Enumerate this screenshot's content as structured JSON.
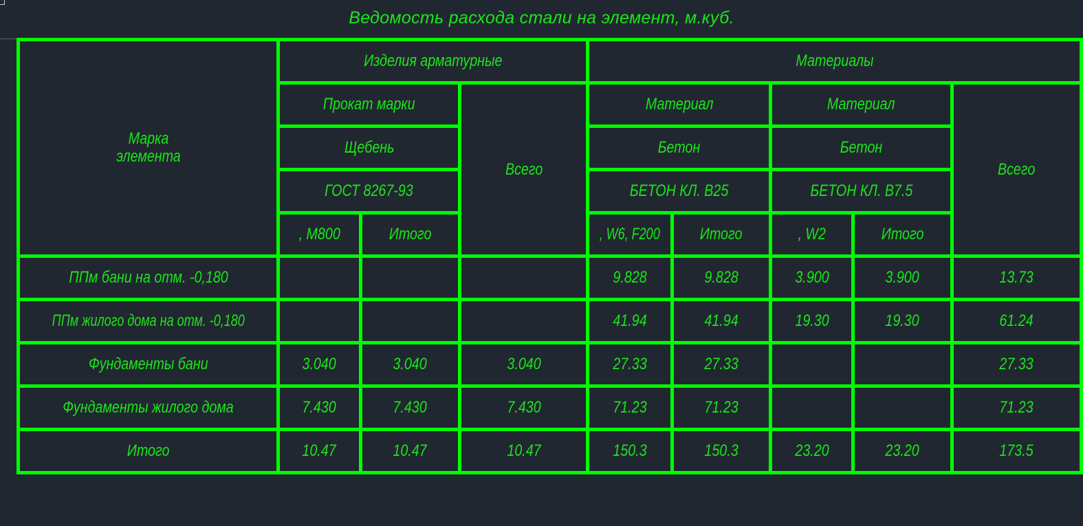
{
  "title": "Ведомость расхода стали на элемент, м.куб.",
  "colors": {
    "background": "#212730",
    "lines": "#00ff00",
    "text": "#19e619"
  },
  "header": {
    "mark": "Марка элемента",
    "group_rebar": "Изделия арматурные",
    "group_materials": "Материалы",
    "rebar_type": "Прокат марки",
    "rebar_total": "Всего",
    "material_1": "Материал",
    "material_2": "Материал",
    "materials_total": "Всего",
    "rebar_name": "Щебень",
    "material_1_name": "Бетон",
    "material_2_name": "Бетон",
    "rebar_standard": "ГОСТ 8267-93",
    "material_1_class": "БЕТОН КЛ. B25",
    "material_2_class": "БЕТОН КЛ. B7.5",
    "rebar_grade": ", M800",
    "rebar_subtotal": "Итого",
    "material_1_grade": ", W6, F200",
    "material_1_subtotal": "Итого",
    "material_2_grade": ", W2",
    "material_2_subtotal": "Итого"
  },
  "rows": [
    [
      "ППм бани на отм. -0,180",
      "",
      "",
      "",
      "9.828",
      "9.828",
      "3.900",
      "3.900",
      "13.73"
    ],
    [
      "ППм жилого дома на отм. -0,180",
      "",
      "",
      "",
      "41.94",
      "41.94",
      "19.30",
      "19.30",
      "61.24"
    ],
    [
      "Фундаменты бани",
      "3.040",
      "3.040",
      "3.040",
      "27.33",
      "27.33",
      "",
      "",
      "27.33"
    ],
    [
      "Фундаменты жилого дома",
      "7.430",
      "7.430",
      "7.430",
      "71.23",
      "71.23",
      "",
      "",
      "71.23"
    ],
    [
      "Итого",
      "10.47",
      "10.47",
      "10.47",
      "150.3",
      "150.3",
      "23.20",
      "23.20",
      "173.5"
    ]
  ]
}
